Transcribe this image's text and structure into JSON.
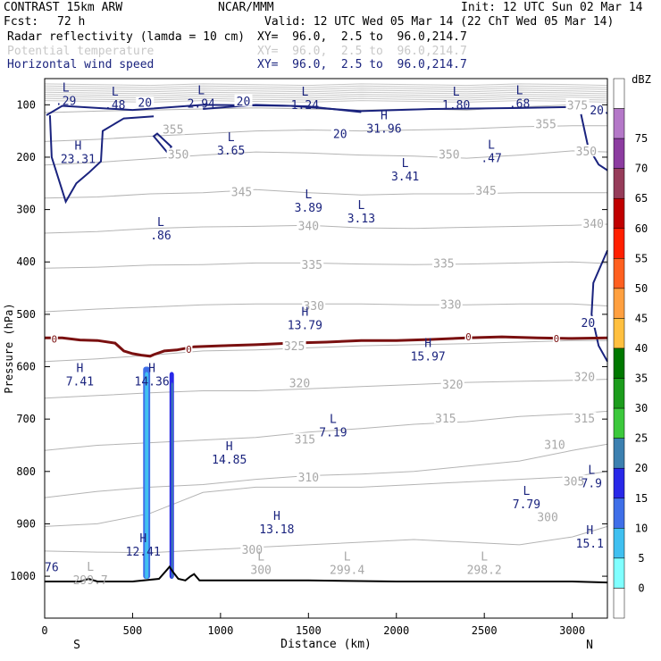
{
  "header": {
    "model": "CONTRAST 15km ARW",
    "org": "NCAR/MMM",
    "init": "Init: 12 UTC Sun 02 Mar 14",
    "fcst_label": "Fcst:",
    "fcst_value": "72 h",
    "valid": "Valid: 12 UTC Wed 05 Mar 14 (22 ChT Wed 05 Mar 14)",
    "fields": [
      {
        "name": "Radar reflectivity (lamda = 10 cm)",
        "xy": "XY=  96.0,  2.5 to  96.0,214.7",
        "color": "#000000"
      },
      {
        "name": "Potential temperature",
        "xy": "XY=  96.0,  2.5 to  96.0,214.7",
        "color": "#c8c8c8"
      },
      {
        "name": "Horizontal wind speed",
        "xy": "XY=  96.0,  2.5 to  96.0,214.7",
        "color": "#1a237e"
      }
    ]
  },
  "chart_data": {
    "type": "cross-section",
    "xlabel": "Distance (km)",
    "ylabel": "Pressure (hPa)",
    "xlim": [
      0,
      3200
    ],
    "ylim": [
      1080,
      50
    ],
    "x_ticks": [
      0,
      500,
      1000,
      1500,
      2000,
      2500,
      3000
    ],
    "y_ticks": [
      100,
      200,
      300,
      400,
      500,
      600,
      700,
      800,
      900,
      1000
    ],
    "x_end_labels": {
      "left": "S",
      "right": "N"
    },
    "colorbar": {
      "unit": "dBZ",
      "levels": [
        0,
        5,
        10,
        15,
        20,
        25,
        30,
        35,
        40,
        45,
        50,
        55,
        60,
        65,
        70,
        75
      ],
      "colors": [
        "#ffffff",
        "#80ffff",
        "#40c0f0",
        "#3f6fe8",
        "#2828e8",
        "#3c80b0",
        "#3cc83c",
        "#1c9c1c",
        "#007800",
        "#ffc040",
        "#ffa040",
        "#ff6020",
        "#ff2000",
        "#c00000",
        "#963c5a",
        "#8c3ca0",
        "#b478c8",
        "#ffffff"
      ]
    },
    "theta_isentropes": [
      {
        "value": 300,
        "p": [
          952,
          954,
          955,
          950,
          945,
          940,
          935,
          930,
          935,
          940,
          925,
          905
        ]
      },
      {
        "value": 305,
        "p": [
          905,
          900,
          880,
          840,
          830,
          830,
          830,
          825,
          820,
          815,
          810,
          800
        ]
      },
      {
        "value": 310,
        "p": [
          850,
          838,
          830,
          825,
          815,
          808,
          805,
          800,
          790,
          780,
          760,
          748
        ]
      },
      {
        "value": 315,
        "p": [
          760,
          750,
          745,
          740,
          735,
          725,
          718,
          710,
          705,
          695,
          690,
          685
        ]
      },
      {
        "value": 320,
        "p": [
          660,
          655,
          650,
          646,
          646,
          642,
          638,
          634,
          630,
          628,
          626,
          624
        ]
      },
      {
        "value": 325,
        "p": [
          590,
          585,
          578,
          570,
          568,
          564,
          560,
          558,
          556,
          553,
          550,
          550
        ]
      },
      {
        "value": 330,
        "p": [
          495,
          490,
          486,
          482,
          480,
          480,
          480,
          482,
          482,
          480,
          480,
          484
        ]
      },
      {
        "value": 335,
        "p": [
          412,
          410,
          406,
          405,
          402,
          402,
          404,
          405,
          404,
          402,
          400,
          403
        ]
      },
      {
        "value": 340,
        "p": [
          345,
          342,
          336,
          333,
          332,
          330,
          335,
          336,
          334,
          332,
          330,
          328
        ]
      },
      {
        "value": 345,
        "p": [
          278,
          276,
          270,
          268,
          262,
          268,
          272,
          270,
          270,
          268,
          268,
          268
        ]
      },
      {
        "value": 350,
        "p": [
          215,
          210,
          203,
          196,
          190,
          192,
          196,
          198,
          202,
          196,
          188,
          190
        ]
      },
      {
        "value": 355,
        "p": [
          170,
          166,
          160,
          155,
          150,
          148,
          150,
          148,
          146,
          142,
          140,
          140
        ]
      },
      {
        "value": 375,
        "p": [
          115,
          112,
          110,
          108,
          106,
          108,
          110,
          108,
          110,
          104,
          100,
          100
        ]
      }
    ],
    "theta_xs": [
      0,
      300,
      600,
      900,
      1200,
      1500,
      1800,
      2100,
      2400,
      2700,
      3000,
      3200
    ],
    "theta_labels": [
      {
        "text": "300",
        "x": 1180,
        "p": 950
      },
      {
        "text": "300",
        "x": 2860,
        "p": 888
      },
      {
        "text": "305",
        "x": 3010,
        "p": 820
      },
      {
        "text": "310",
        "x": 1500,
        "p": 812
      },
      {
        "text": "310",
        "x": 2900,
        "p": 750
      },
      {
        "text": "315",
        "x": 1480,
        "p": 740
      },
      {
        "text": "315",
        "x": 2280,
        "p": 700
      },
      {
        "text": "315",
        "x": 3070,
        "p": 700
      },
      {
        "text": "320",
        "x": 1450,
        "p": 632
      },
      {
        "text": "320",
        "x": 2320,
        "p": 635
      },
      {
        "text": "320",
        "x": 3070,
        "p": 620
      },
      {
        "text": "325",
        "x": 1420,
        "p": 562
      },
      {
        "text": "330",
        "x": 1530,
        "p": 485
      },
      {
        "text": "330",
        "x": 2310,
        "p": 482
      },
      {
        "text": "335",
        "x": 1520,
        "p": 406
      },
      {
        "text": "335",
        "x": 2270,
        "p": 404
      },
      {
        "text": "340",
        "x": 1500,
        "p": 332
      },
      {
        "text": "340",
        "x": 3120,
        "p": 328
      },
      {
        "text": "345",
        "x": 1120,
        "p": 267
      },
      {
        "text": "345",
        "x": 2510,
        "p": 265
      },
      {
        "text": "350",
        "x": 760,
        "p": 196
      },
      {
        "text": "350",
        "x": 2300,
        "p": 196
      },
      {
        "text": "350",
        "x": 3080,
        "p": 190
      },
      {
        "text": "355",
        "x": 730,
        "p": 148
      },
      {
        "text": "355",
        "x": 2850,
        "p": 138
      },
      {
        "text": "375",
        "x": 3030,
        "p": 102
      }
    ],
    "freezing_level": {
      "label": "0",
      "x": [
        0,
        100,
        200,
        300,
        400,
        450,
        500,
        550,
        600,
        620,
        680,
        750,
        850,
        1000,
        1200,
        1400,
        1600,
        1800,
        2000,
        2200,
        2400,
        2600,
        2800,
        3000,
        3200
      ],
      "p": [
        545,
        545,
        549,
        550,
        555,
        570,
        575,
        578,
        580,
        577,
        570,
        568,
        562,
        560,
        558,
        555,
        553,
        550,
        550,
        548,
        545,
        543,
        545,
        546,
        545
      ],
      "labels": [
        {
          "x": 55,
          "p": 547
        },
        {
          "x": 820,
          "p": 567
        },
        {
          "x": 2410,
          "p": 543
        },
        {
          "x": 2910,
          "p": 546
        }
      ]
    },
    "wind_speed_labels": [
      {
        "text": "20",
        "x": 570,
        "p": 97
      },
      {
        "text": "20",
        "x": 1130,
        "p": 94
      },
      {
        "text": "20",
        "x": 1680,
        "p": 157
      },
      {
        "text": "20",
        "x": 3140,
        "p": 111
      },
      {
        "text": "20",
        "x": 3090,
        "p": 517
      }
    ],
    "highs_lows": [
      {
        "kind": "L",
        "value": ".29",
        "x": 120,
        "p": 85
      },
      {
        "kind": "L",
        "value": ".48",
        "x": 400,
        "p": 93
      },
      {
        "kind": "L",
        "value": "2.94",
        "x": 890,
        "p": 90
      },
      {
        "kind": "L",
        "value": "1.24",
        "x": 1480,
        "p": 93
      },
      {
        "kind": "H",
        "value": "31.96",
        "x": 1930,
        "p": 138
      },
      {
        "kind": "L",
        "value": "1.80",
        "x": 2340,
        "p": 93
      },
      {
        "kind": "L",
        "value": ".68",
        "x": 2700,
        "p": 90
      },
      {
        "kind": "H",
        "value": "23.31",
        "x": 190,
        "p": 196
      },
      {
        "kind": "L",
        "value": "3.65",
        "x": 1060,
        "p": 180
      },
      {
        "kind": "L",
        "value": ".47",
        "x": 2540,
        "p": 194
      },
      {
        "kind": "L",
        "value": "3.41",
        "x": 2050,
        "p": 229
      },
      {
        "kind": "L",
        "value": "3.89",
        "x": 1500,
        "p": 289
      },
      {
        "kind": "L",
        "value": "3.13",
        "x": 1800,
        "p": 309
      },
      {
        "kind": "L",
        "value": ".86",
        "x": 660,
        "p": 342
      },
      {
        "kind": "H",
        "value": "13.79",
        "x": 1480,
        "p": 513
      },
      {
        "kind": "H",
        "value": "15.97",
        "x": 2180,
        "p": 573
      },
      {
        "kind": "H",
        "value": "7.41",
        "x": 200,
        "p": 620
      },
      {
        "kind": "H",
        "value": "14.36",
        "x": 610,
        "p": 620
      },
      {
        "kind": "L",
        "value": "7.19",
        "x": 1640,
        "p": 718
      },
      {
        "kind": "H",
        "value": "14.85",
        "x": 1050,
        "p": 770
      },
      {
        "kind": "L",
        "value": "7.79",
        "x": 2740,
        "p": 855
      },
      {
        "kind": "L",
        "value": "7.9",
        "x": 3110,
        "p": 815
      },
      {
        "kind": "H",
        "value": "13.18",
        "x": 1320,
        "p": 903
      },
      {
        "kind": "H",
        "value": "15.1",
        "x": 3100,
        "p": 930
      },
      {
        "kind": "H",
        "value": "12.41",
        "x": 560,
        "p": 945
      }
    ],
    "low_marks": [
      {
        "kind": "L",
        "value": "299.7",
        "x": 260,
        "p": 1000
      },
      {
        "kind": "L",
        "value": "300",
        "x": 1230,
        "p": 980
      },
      {
        "kind": "L",
        "value": "299.4",
        "x": 1720,
        "p": 980
      },
      {
        "kind": "L",
        "value": "298.2",
        "x": 2500,
        "p": 980
      },
      {
        "kind": "",
        "value": "76",
        "x": 40,
        "p": 975
      }
    ],
    "reflectivity_columns": [
      {
        "x0": 560,
        "x1": 600,
        "ptop": 600,
        "pbot": 1005,
        "dbz": 10
      },
      {
        "x0": 570,
        "x1": 590,
        "ptop": 610,
        "pbot": 1005,
        "dbz": 5
      },
      {
        "x0": 710,
        "x1": 735,
        "ptop": 610,
        "pbot": 1005,
        "dbz": 15
      },
      {
        "x0": 720,
        "x1": 730,
        "ptop": 630,
        "pbot": 1005,
        "dbz": 20
      }
    ],
    "terrain": {
      "x": [
        0,
        200,
        250,
        300,
        500,
        650,
        690,
        710,
        730,
        760,
        800,
        830,
        850,
        880,
        1000,
        1500,
        2000,
        2500,
        3000,
        3200
      ],
      "p": [
        1010,
        1010,
        1005,
        1010,
        1010,
        1005,
        990,
        982,
        992,
        1005,
        1008,
        1000,
        996,
        1008,
        1008,
        1008,
        1010,
        1010,
        1010,
        1012
      ]
    }
  }
}
